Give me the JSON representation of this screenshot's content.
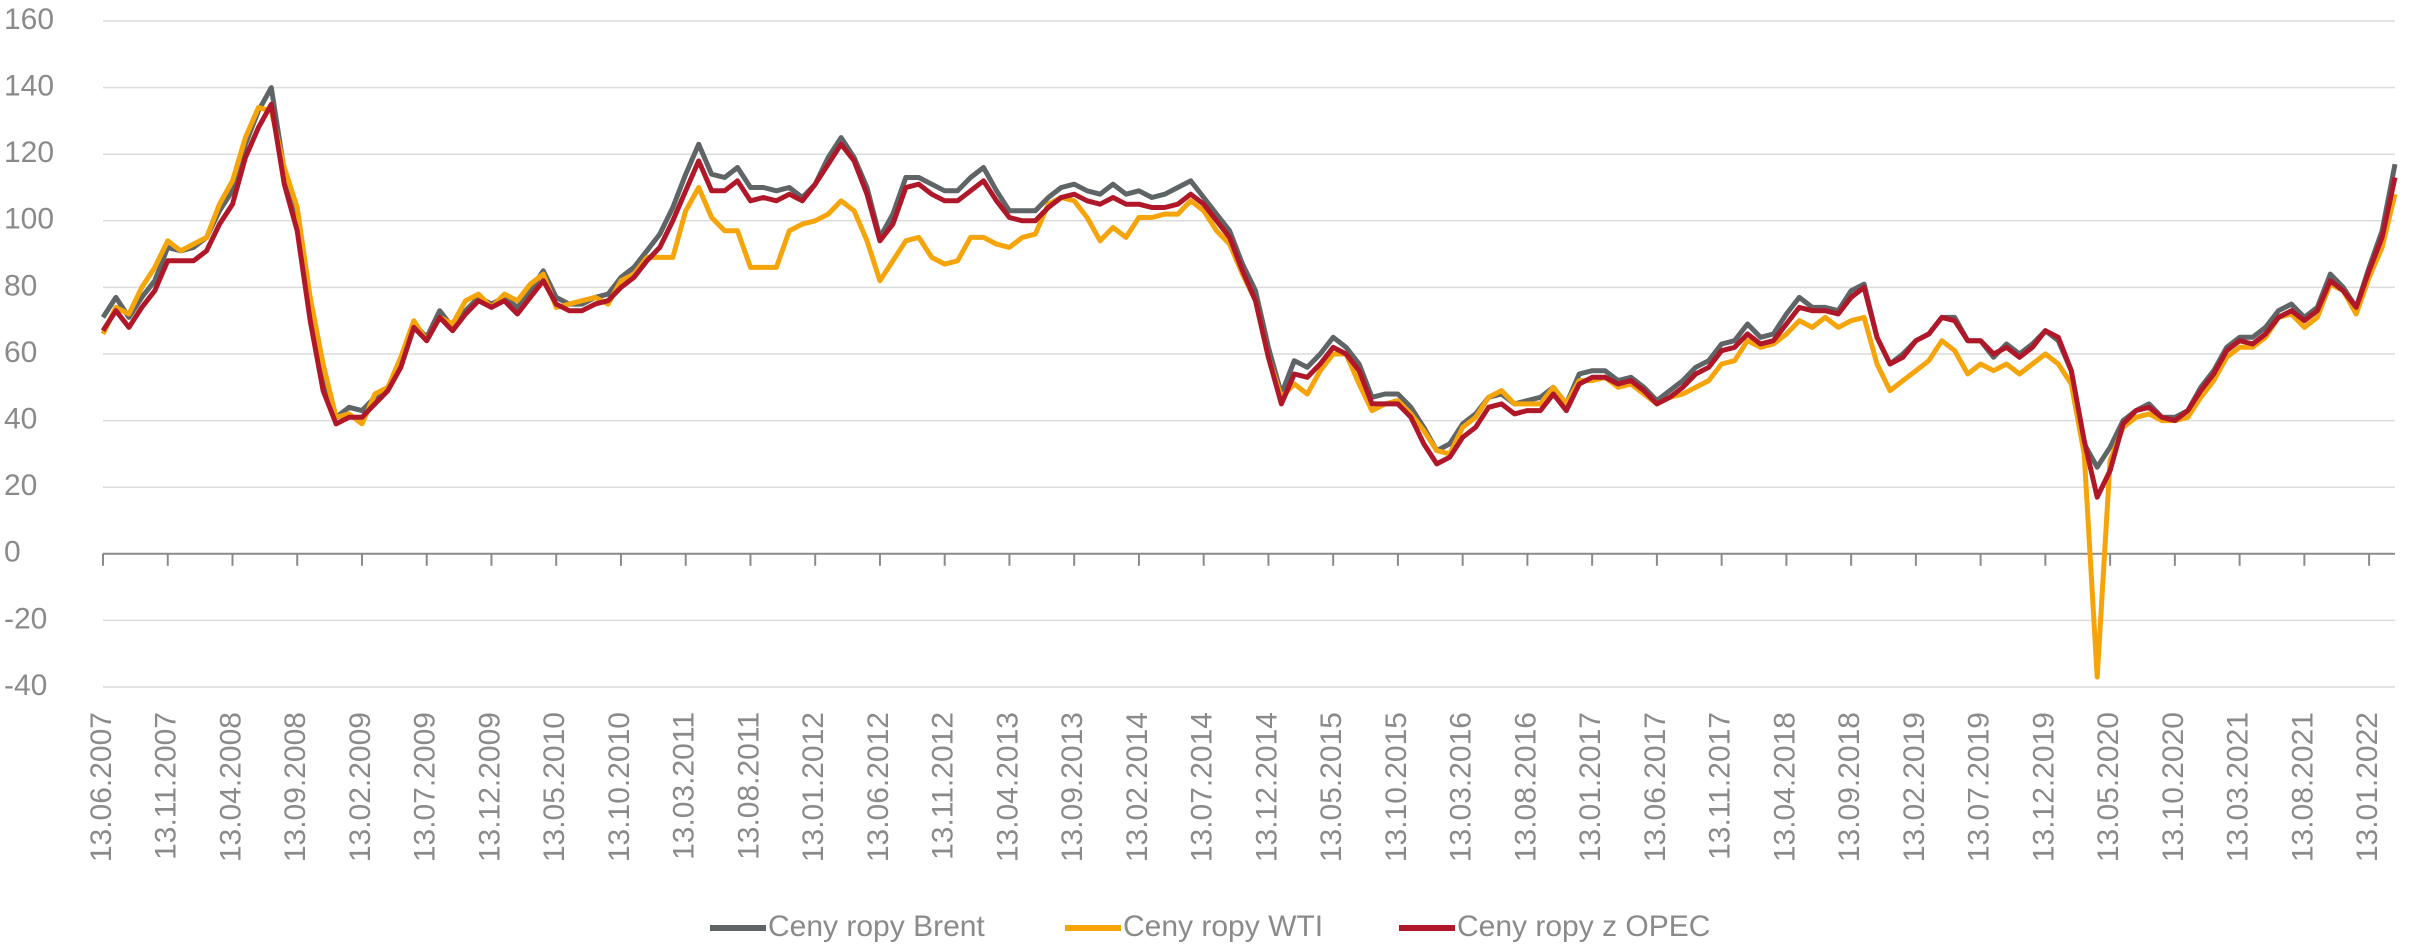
{
  "chart_data": {
    "type": "line",
    "x": [
      "13.06.2007",
      "13.07.2007",
      "13.08.2007",
      "13.09.2007",
      "13.10.2007",
      "13.11.2007",
      "13.12.2007",
      "13.01.2008",
      "13.02.2008",
      "13.03.2008",
      "13.04.2008",
      "13.05.2008",
      "13.06.2008",
      "13.07.2008",
      "13.08.2008",
      "13.09.2008",
      "13.10.2008",
      "13.11.2008",
      "13.12.2008",
      "13.01.2009",
      "13.02.2009",
      "13.03.2009",
      "13.04.2009",
      "13.05.2009",
      "13.06.2009",
      "13.07.2009",
      "13.08.2009",
      "13.09.2009",
      "13.10.2009",
      "13.11.2009",
      "13.12.2009",
      "13.01.2010",
      "13.02.2010",
      "13.03.2010",
      "13.04.2010",
      "13.05.2010",
      "13.06.2010",
      "13.07.2010",
      "13.08.2010",
      "13.09.2010",
      "13.10.2010",
      "13.11.2010",
      "13.12.2010",
      "13.01.2011",
      "13.02.2011",
      "13.03.2011",
      "13.04.2011",
      "13.05.2011",
      "13.06.2011",
      "13.07.2011",
      "13.08.2011",
      "13.09.2011",
      "13.10.2011",
      "13.11.2011",
      "13.12.2011",
      "13.01.2012",
      "13.02.2012",
      "13.03.2012",
      "13.04.2012",
      "13.05.2012",
      "13.06.2012",
      "13.07.2012",
      "13.08.2012",
      "13.09.2012",
      "13.10.2012",
      "13.11.2012",
      "13.12.2012",
      "13.01.2013",
      "13.02.2013",
      "13.03.2013",
      "13.04.2013",
      "13.05.2013",
      "13.06.2013",
      "13.07.2013",
      "13.08.2013",
      "13.09.2013",
      "13.10.2013",
      "13.11.2013",
      "13.12.2013",
      "13.01.2014",
      "13.02.2014",
      "13.03.2014",
      "13.04.2014",
      "13.05.2014",
      "13.06.2014",
      "13.07.2014",
      "13.08.2014",
      "13.09.2014",
      "13.10.2014",
      "13.11.2014",
      "13.12.2014",
      "13.01.2015",
      "13.02.2015",
      "13.03.2015",
      "13.04.2015",
      "13.05.2015",
      "13.06.2015",
      "13.07.2015",
      "13.08.2015",
      "13.09.2015",
      "13.10.2015",
      "13.11.2015",
      "13.12.2015",
      "13.01.2016",
      "13.02.2016",
      "13.03.2016",
      "13.04.2016",
      "13.05.2016",
      "13.06.2016",
      "13.07.2016",
      "13.08.2016",
      "13.09.2016",
      "13.10.2016",
      "13.11.2016",
      "13.12.2016",
      "13.01.2017",
      "13.02.2017",
      "13.03.2017",
      "13.04.2017",
      "13.05.2017",
      "13.06.2017",
      "13.07.2017",
      "13.08.2017",
      "13.09.2017",
      "13.10.2017",
      "13.11.2017",
      "13.12.2017",
      "13.01.2018",
      "13.02.2018",
      "13.03.2018",
      "13.04.2018",
      "13.05.2018",
      "13.06.2018",
      "13.07.2018",
      "13.08.2018",
      "13.09.2018",
      "13.10.2018",
      "13.11.2018",
      "13.12.2018",
      "13.01.2019",
      "13.02.2019",
      "13.03.2019",
      "13.04.2019",
      "13.05.2019",
      "13.06.2019",
      "13.07.2019",
      "13.08.2019",
      "13.09.2019",
      "13.10.2019",
      "13.11.2019",
      "13.12.2019",
      "13.01.2020",
      "13.02.2020",
      "13.03.2020",
      "13.04.2020",
      "13.05.2020",
      "13.06.2020",
      "13.07.2020",
      "13.08.2020",
      "13.09.2020",
      "13.10.2020",
      "13.11.2020",
      "13.12.2020",
      "13.01.2021",
      "13.02.2021",
      "13.03.2021",
      "13.04.2021",
      "13.05.2021",
      "13.06.2021",
      "13.07.2021",
      "13.08.2021",
      "13.09.2021",
      "13.10.2021",
      "13.11.2021",
      "13.12.2021",
      "13.01.2022",
      "13.02.2022",
      "13.03.2022"
    ],
    "series": [
      {
        "name": "Ceny ropy Brent",
        "color": "#5f6466",
        "values": [
          71,
          77,
          71,
          77,
          82,
          92,
          91,
          92,
          95,
          103,
          109,
          123,
          133,
          140,
          115,
          100,
          73,
          53,
          41,
          44,
          43,
          47,
          50,
          58,
          69,
          65,
          73,
          68,
          73,
          77,
          75,
          77,
          74,
          79,
          85,
          77,
          75,
          75,
          77,
          78,
          83,
          86,
          91,
          96,
          104,
          114,
          123,
          114,
          113,
          116,
          110,
          110,
          109,
          110,
          107,
          111,
          119,
          125,
          119,
          110,
          95,
          102,
          113,
          113,
          111,
          109,
          109,
          113,
          116,
          109,
          103,
          103,
          103,
          107,
          110,
          111,
          109,
          108,
          111,
          108,
          109,
          107,
          108,
          110,
          112,
          107,
          102,
          97,
          87,
          79,
          62,
          48,
          58,
          56,
          60,
          65,
          62,
          57,
          47,
          48,
          48,
          44,
          38,
          31,
          33,
          39,
          42,
          47,
          48,
          45,
          46,
          47,
          50,
          45,
          54,
          55,
          55,
          52,
          53,
          50,
          46,
          49,
          52,
          56,
          58,
          63,
          64,
          69,
          65,
          66,
          72,
          77,
          74,
          74,
          73,
          79,
          81,
          65,
          57,
          60,
          64,
          66,
          71,
          71,
          64,
          64,
          59,
          63,
          60,
          63,
          67,
          64,
          55,
          33,
          26,
          32,
          40,
          43,
          45,
          41,
          41,
          43,
          50,
          55,
          62,
          65,
          65,
          68,
          73,
          75,
          71,
          74,
          84,
          80,
          74,
          86,
          97,
          117
        ]
      },
      {
        "name": "Ceny ropy WTI",
        "color": "#f5a50a",
        "values": [
          66,
          74,
          72,
          80,
          86,
          94,
          91,
          93,
          95,
          105,
          112,
          125,
          134,
          133,
          116,
          104,
          77,
          57,
          41,
          42,
          39,
          48,
          50,
          59,
          70,
          64,
          71,
          69,
          76,
          78,
          74,
          78,
          76,
          81,
          84,
          74,
          75,
          76,
          77,
          75,
          82,
          84,
          89,
          89,
          89,
          103,
          110,
          101,
          97,
          97,
          86,
          86,
          86,
          97,
          99,
          100,
          102,
          106,
          103,
          94,
          82,
          88,
          94,
          95,
          89,
          87,
          88,
          95,
          95,
          93,
          92,
          95,
          96,
          105,
          107,
          106,
          101,
          94,
          98,
          95,
          101,
          101,
          102,
          102,
          106,
          103,
          97,
          93,
          84,
          76,
          59,
          47,
          51,
          48,
          55,
          60,
          60,
          51,
          43,
          45,
          46,
          42,
          37,
          31,
          30,
          38,
          41,
          47,
          49,
          45,
          45,
          45,
          50,
          45,
          52,
          52,
          53,
          50,
          51,
          48,
          45,
          47,
          48,
          50,
          52,
          57,
          58,
          64,
          62,
          63,
          66,
          70,
          68,
          71,
          68,
          70,
          71,
          57,
          49,
          52,
          55,
          58,
          64,
          61,
          54,
          57,
          55,
          57,
          54,
          57,
          60,
          57,
          51,
          30,
          -37,
          28,
          38,
          41,
          42,
          40,
          40,
          41,
          47,
          52,
          59,
          62,
          62,
          65,
          71,
          72,
          68,
          71,
          81,
          79,
          72,
          83,
          92,
          108
        ]
      },
      {
        "name": "Ceny ropy z OPEC",
        "color": "#b0182a",
        "values": [
          67,
          73,
          68,
          74,
          79,
          88,
          88,
          88,
          91,
          99,
          105,
          119,
          128,
          135,
          111,
          97,
          70,
          49,
          39,
          41,
          41,
          45,
          49,
          56,
          68,
          64,
          71,
          67,
          72,
          76,
          74,
          76,
          72,
          77,
          82,
          75,
          73,
          73,
          75,
          76,
          80,
          83,
          88,
          92,
          100,
          109,
          118,
          109,
          109,
          112,
          106,
          107,
          106,
          108,
          106,
          111,
          117,
          123,
          118,
          108,
          94,
          99,
          110,
          111,
          108,
          106,
          106,
          109,
          112,
          106,
          101,
          100,
          100,
          104,
          107,
          108,
          106,
          105,
          107,
          105,
          105,
          104,
          104,
          105,
          108,
          105,
          100,
          95,
          85,
          76,
          59,
          45,
          54,
          53,
          57,
          62,
          60,
          55,
          45,
          45,
          45,
          41,
          33,
          27,
          29,
          35,
          38,
          44,
          45,
          42,
          43,
          43,
          48,
          43,
          51,
          53,
          53,
          51,
          52,
          49,
          45,
          47,
          50,
          54,
          56,
          61,
          62,
          66,
          63,
          64,
          69,
          74,
          73,
          73,
          72,
          77,
          80,
          65,
          57,
          59,
          64,
          66,
          71,
          70,
          64,
          64,
          60,
          62,
          59,
          62,
          67,
          65,
          55,
          34,
          17,
          25,
          39,
          43,
          44,
          41,
          40,
          43,
          49,
          54,
          61,
          64,
          63,
          66,
          71,
          73,
          70,
          73,
          82,
          79,
          74,
          85,
          95,
          113
        ]
      }
    ],
    "xticks": [
      "13.06.2007",
      "13.11.2007",
      "13.04.2008",
      "13.09.2008",
      "13.02.2009",
      "13.07.2009",
      "13.12.2009",
      "13.05.2010",
      "13.10.2010",
      "13.03.2011",
      "13.08.2011",
      "13.01.2012",
      "13.06.2012",
      "13.11.2012",
      "13.04.2013",
      "13.09.2013",
      "13.02.2014",
      "13.07.2014",
      "13.12.2014",
      "13.05.2015",
      "13.10.2015",
      "13.03.2016",
      "13.08.2016",
      "13.01.2017",
      "13.06.2017",
      "13.11.2017",
      "13.04.2018",
      "13.09.2018",
      "13.02.2019",
      "13.07.2019",
      "13.12.2019",
      "13.05.2020",
      "13.10.2020",
      "13.03.2021",
      "13.08.2021",
      "13.01.2022"
    ],
    "ylim": [
      -40,
      160
    ],
    "yticks": [
      -40,
      -20,
      0,
      20,
      40,
      60,
      80,
      100,
      120,
      140,
      160
    ],
    "grid": true,
    "legend": "bottom"
  }
}
